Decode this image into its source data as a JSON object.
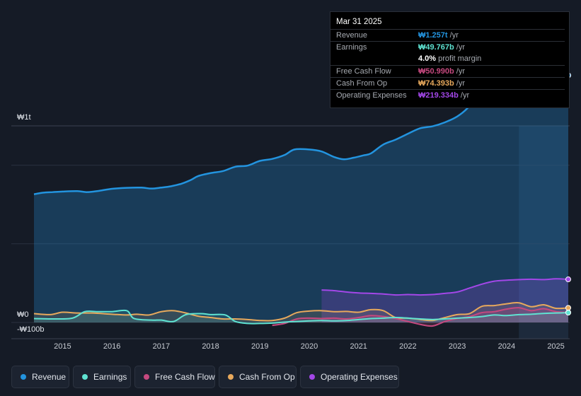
{
  "chart_data": {
    "type": "area",
    "title": "",
    "currency": "₩",
    "y_axis": {
      "labels": [
        "₩1t",
        "₩0",
        "-₩100b"
      ],
      "ylim": [
        -100,
        1300
      ],
      "unit": "billion KRW"
    },
    "x_axis": {
      "ticks": [
        "2015",
        "2016",
        "2017",
        "2018",
        "2019",
        "2020",
        "2021",
        "2022",
        "2023",
        "2024",
        "2025"
      ],
      "range": [
        2014.42,
        2025.25
      ]
    },
    "forecast_start": 2024.25,
    "series": [
      {
        "key": "revenue",
        "name": "Revenue",
        "color": "#2394df",
        "fill": true,
        "points": [
          [
            2014.42,
            652
          ],
          [
            2014.6,
            660
          ],
          [
            2014.8,
            663
          ],
          [
            2015.0,
            666
          ],
          [
            2015.3,
            668
          ],
          [
            2015.5,
            663
          ],
          [
            2015.75,
            670
          ],
          [
            2016.0,
            680
          ],
          [
            2016.3,
            685
          ],
          [
            2016.6,
            686
          ],
          [
            2016.8,
            681
          ],
          [
            2017.0,
            686
          ],
          [
            2017.2,
            693
          ],
          [
            2017.4,
            705
          ],
          [
            2017.6,
            725
          ],
          [
            2017.75,
            745
          ],
          [
            2018.0,
            760
          ],
          [
            2018.25,
            770
          ],
          [
            2018.5,
            792
          ],
          [
            2018.75,
            798
          ],
          [
            2019.0,
            822
          ],
          [
            2019.25,
            832
          ],
          [
            2019.5,
            852
          ],
          [
            2019.7,
            880
          ],
          [
            2020.0,
            880
          ],
          [
            2020.25,
            870
          ],
          [
            2020.5,
            842
          ],
          [
            2020.7,
            830
          ],
          [
            2020.9,
            838
          ],
          [
            2021.1,
            850
          ],
          [
            2021.25,
            860
          ],
          [
            2021.5,
            905
          ],
          [
            2021.75,
            930
          ],
          [
            2022.0,
            960
          ],
          [
            2022.25,
            988
          ],
          [
            2022.5,
            998
          ],
          [
            2022.75,
            1018
          ],
          [
            2023.0,
            1048
          ],
          [
            2023.2,
            1088
          ],
          [
            2023.45,
            1160
          ],
          [
            2023.7,
            1210
          ],
          [
            2024.0,
            1230
          ],
          [
            2024.25,
            1238
          ],
          [
            2024.5,
            1245
          ],
          [
            2024.8,
            1250
          ],
          [
            2025.0,
            1255
          ],
          [
            2025.25,
            1257
          ]
        ]
      },
      {
        "key": "earnings",
        "name": "Earnings",
        "color": "#5fe3d2",
        "fill": true,
        "points": [
          [
            2014.42,
            20
          ],
          [
            2014.8,
            18
          ],
          [
            2015.2,
            22
          ],
          [
            2015.45,
            55
          ],
          [
            2015.7,
            55
          ],
          [
            2016.0,
            55
          ],
          [
            2016.3,
            60
          ],
          [
            2016.45,
            20
          ],
          [
            2016.8,
            12
          ],
          [
            2017.0,
            12
          ],
          [
            2017.25,
            5
          ],
          [
            2017.5,
            40
          ],
          [
            2017.8,
            45
          ],
          [
            2018.0,
            40
          ],
          [
            2018.3,
            38
          ],
          [
            2018.5,
            5
          ],
          [
            2018.75,
            -5
          ],
          [
            2019.0,
            -5
          ],
          [
            2019.25,
            -3
          ],
          [
            2019.5,
            2
          ],
          [
            2019.75,
            5
          ],
          [
            2020.0,
            8
          ],
          [
            2020.25,
            10
          ],
          [
            2020.5,
            8
          ],
          [
            2020.75,
            10
          ],
          [
            2021.0,
            15
          ],
          [
            2021.25,
            20
          ],
          [
            2021.5,
            22
          ],
          [
            2021.75,
            25
          ],
          [
            2022.0,
            22
          ],
          [
            2022.25,
            18
          ],
          [
            2022.5,
            15
          ],
          [
            2022.75,
            18
          ],
          [
            2023.0,
            22
          ],
          [
            2023.25,
            25
          ],
          [
            2023.5,
            30
          ],
          [
            2023.75,
            38
          ],
          [
            2024.0,
            35
          ],
          [
            2024.25,
            40
          ],
          [
            2024.5,
            42
          ],
          [
            2024.75,
            46
          ],
          [
            2025.0,
            48
          ],
          [
            2025.25,
            49.767
          ]
        ]
      },
      {
        "key": "fcf",
        "name": "Free Cash Flow",
        "color": "#c5497f",
        "fill": true,
        "points": [
          [
            2019.25,
            -15
          ],
          [
            2019.5,
            -5
          ],
          [
            2019.75,
            18
          ],
          [
            2020.0,
            22
          ],
          [
            2020.25,
            20
          ],
          [
            2020.5,
            22
          ],
          [
            2020.75,
            18
          ],
          [
            2021.0,
            25
          ],
          [
            2021.25,
            35
          ],
          [
            2021.5,
            30
          ],
          [
            2021.75,
            20
          ],
          [
            2022.0,
            5
          ],
          [
            2022.25,
            -10
          ],
          [
            2022.5,
            -18
          ],
          [
            2022.75,
            5
          ],
          [
            2023.0,
            20
          ],
          [
            2023.25,
            30
          ],
          [
            2023.5,
            50
          ],
          [
            2023.75,
            55
          ],
          [
            2024.0,
            68
          ],
          [
            2024.25,
            75
          ],
          [
            2024.5,
            60
          ],
          [
            2024.75,
            70
          ],
          [
            2025.0,
            55
          ],
          [
            2025.25,
            50.99
          ]
        ]
      },
      {
        "key": "cfo",
        "name": "Cash From Op",
        "color": "#e8a95c",
        "fill": true,
        "points": [
          [
            2014.42,
            45
          ],
          [
            2014.75,
            40
          ],
          [
            2015.0,
            52
          ],
          [
            2015.3,
            48
          ],
          [
            2015.6,
            48
          ],
          [
            2016.0,
            42
          ],
          [
            2016.3,
            38
          ],
          [
            2016.5,
            42
          ],
          [
            2016.75,
            38
          ],
          [
            2017.0,
            55
          ],
          [
            2017.25,
            60
          ],
          [
            2017.5,
            48
          ],
          [
            2017.75,
            32
          ],
          [
            2018.0,
            25
          ],
          [
            2018.25,
            18
          ],
          [
            2018.5,
            18
          ],
          [
            2018.75,
            15
          ],
          [
            2019.0,
            10
          ],
          [
            2019.25,
            10
          ],
          [
            2019.5,
            22
          ],
          [
            2019.75,
            50
          ],
          [
            2020.0,
            58
          ],
          [
            2020.25,
            60
          ],
          [
            2020.5,
            55
          ],
          [
            2020.75,
            56
          ],
          [
            2021.0,
            52
          ],
          [
            2021.25,
            65
          ],
          [
            2021.5,
            60
          ],
          [
            2021.75,
            25
          ],
          [
            2022.0,
            22
          ],
          [
            2022.25,
            15
          ],
          [
            2022.5,
            10
          ],
          [
            2022.75,
            25
          ],
          [
            2023.0,
            40
          ],
          [
            2023.25,
            45
          ],
          [
            2023.5,
            82
          ],
          [
            2023.75,
            86
          ],
          [
            2024.0,
            95
          ],
          [
            2024.25,
            100
          ],
          [
            2024.5,
            80
          ],
          [
            2024.75,
            90
          ],
          [
            2025.0,
            72
          ],
          [
            2025.25,
            74.393
          ]
        ]
      },
      {
        "key": "opex",
        "name": "Operating Expenses",
        "color": "#a347e8",
        "fill": true,
        "points": [
          [
            2020.25,
            165
          ],
          [
            2020.5,
            162
          ],
          [
            2020.75,
            155
          ],
          [
            2021.0,
            150
          ],
          [
            2021.25,
            148
          ],
          [
            2021.5,
            145
          ],
          [
            2021.75,
            140
          ],
          [
            2022.0,
            142
          ],
          [
            2022.25,
            140
          ],
          [
            2022.5,
            142
          ],
          [
            2022.75,
            148
          ],
          [
            2023.0,
            155
          ],
          [
            2023.25,
            175
          ],
          [
            2023.5,
            195
          ],
          [
            2023.75,
            210
          ],
          [
            2024.0,
            215
          ],
          [
            2024.25,
            218
          ],
          [
            2024.5,
            220
          ],
          [
            2024.75,
            218
          ],
          [
            2025.0,
            222
          ],
          [
            2025.25,
            219.334
          ]
        ]
      }
    ]
  },
  "tooltip": {
    "date": "Mar 31 2025",
    "rows": [
      {
        "label": "Revenue",
        "value": "₩1.257t",
        "unit": " /yr",
        "color": "#2394df"
      },
      {
        "label": "Earnings",
        "value": "₩49.767b",
        "unit": " /yr",
        "color": "#5fe3d2"
      },
      {
        "label": "Free Cash Flow",
        "value": "₩50.990b",
        "unit": " /yr",
        "color": "#c5497f"
      },
      {
        "label": "Cash From Op",
        "value": "₩74.393b",
        "unit": " /yr",
        "color": "#e8a95c"
      },
      {
        "label": "Operating Expenses",
        "value": "₩219.334b",
        "unit": " /yr",
        "color": "#a347e8"
      }
    ],
    "margin": {
      "value": "4.0%",
      "label": " profit margin"
    }
  },
  "legend": [
    {
      "label": "Revenue",
      "color": "#2394df"
    },
    {
      "label": "Earnings",
      "color": "#5fe3d2"
    },
    {
      "label": "Free Cash Flow",
      "color": "#c5497f"
    },
    {
      "label": "Cash From Op",
      "color": "#e8a95c"
    },
    {
      "label": "Operating Expenses",
      "color": "#a347e8"
    }
  ]
}
